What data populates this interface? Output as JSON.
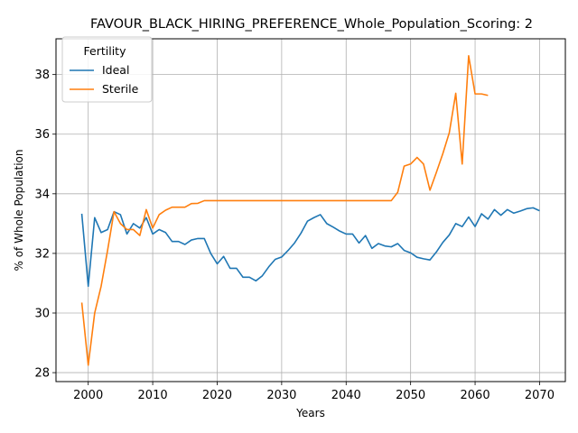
{
  "chart_data": {
    "type": "line",
    "title": "FAVOUR_BLACK_HIRING_PREFERENCE_Whole_Population_Scoring: 2",
    "xlabel": "Years",
    "ylabel": "% of Whole Population",
    "xlim": [
      1995,
      2074
    ],
    "ylim": [
      27.7,
      39.2
    ],
    "xticks": [
      "2000",
      "2010",
      "2020",
      "2030",
      "2040",
      "2050",
      "2060",
      "2070"
    ],
    "yticks": [
      "28",
      "30",
      "32",
      "34",
      "36",
      "38"
    ],
    "grid": true,
    "legend": {
      "title": "Fertility",
      "placement": "top-left"
    },
    "series": [
      {
        "name": "Ideal",
        "color": "#1f77b4",
        "x": [
          1999,
          2000,
          2001,
          2002,
          2003,
          2004,
          2005,
          2006,
          2007,
          2008,
          2009,
          2010,
          2011,
          2012,
          2013,
          2014,
          2015,
          2016,
          2017,
          2018,
          2019,
          2020,
          2021,
          2022,
          2023,
          2024,
          2025,
          2026,
          2027,
          2028,
          2029,
          2030,
          2031,
          2032,
          2033,
          2034,
          2035,
          2036,
          2037,
          2038,
          2039,
          2040,
          2041,
          2042,
          2043,
          2044,
          2045,
          2046,
          2047,
          2048,
          2049,
          2050,
          2051,
          2052,
          2053,
          2054,
          2055,
          2056,
          2057,
          2058,
          2059,
          2060,
          2061,
          2062,
          2063,
          2064,
          2065,
          2066,
          2067,
          2068,
          2069,
          2070
        ],
        "values": [
          33.33,
          30.9,
          33.2,
          32.7,
          32.8,
          33.4,
          33.3,
          32.65,
          33.0,
          32.85,
          33.2,
          32.65,
          32.8,
          32.7,
          32.4,
          32.4,
          32.3,
          32.45,
          32.5,
          32.5,
          32.0,
          31.65,
          31.9,
          31.5,
          31.5,
          31.2,
          31.2,
          31.08,
          31.25,
          31.55,
          31.8,
          31.88,
          32.1,
          32.35,
          32.68,
          33.08,
          33.2,
          33.3,
          33.0,
          32.88,
          32.75,
          32.65,
          32.65,
          32.35,
          32.6,
          32.17,
          32.33,
          32.25,
          32.22,
          32.33,
          32.1,
          32.02,
          31.87,
          31.82,
          31.78,
          32.05,
          32.37,
          32.62,
          33.0,
          32.9,
          33.22,
          32.9,
          33.33,
          33.15,
          33.47,
          33.28,
          33.47,
          33.35,
          33.42,
          33.5,
          33.53,
          33.43
        ]
      },
      {
        "name": "Sterile",
        "color": "#ff7f0e",
        "x": [
          1999,
          2000,
          2001,
          2002,
          2003,
          2004,
          2005,
          2006,
          2007,
          2008,
          2009,
          2010,
          2011,
          2012,
          2013,
          2014,
          2015,
          2016,
          2017,
          2018,
          2019,
          2020,
          2021,
          2022,
          2023,
          2024,
          2025,
          2026,
          2027,
          2028,
          2029,
          2030,
          2031,
          2032,
          2033,
          2034,
          2035,
          2036,
          2037,
          2038,
          2039,
          2040,
          2041,
          2042,
          2043,
          2044,
          2045,
          2046,
          2047,
          2048,
          2049,
          2050,
          2051,
          2052,
          2053,
          2054,
          2055,
          2056,
          2057,
          2058,
          2059,
          2060,
          2061,
          2062
        ],
        "values": [
          30.35,
          28.25,
          30.0,
          30.9,
          32.1,
          33.4,
          33.0,
          32.8,
          32.8,
          32.6,
          33.47,
          32.85,
          33.3,
          33.45,
          33.55,
          33.55,
          33.55,
          33.67,
          33.68,
          33.77,
          33.77,
          33.77,
          33.77,
          33.77,
          33.77,
          33.77,
          33.77,
          33.77,
          33.77,
          33.77,
          33.77,
          33.77,
          33.77,
          33.77,
          33.77,
          33.77,
          33.77,
          33.77,
          33.77,
          33.77,
          33.77,
          33.77,
          33.77,
          33.77,
          33.77,
          33.77,
          33.77,
          33.77,
          33.77,
          34.05,
          34.93,
          35.0,
          35.22,
          35.0,
          34.12,
          34.72,
          35.35,
          36.05,
          37.37,
          35.0,
          38.63,
          37.35,
          37.35,
          37.3
        ]
      }
    ]
  }
}
